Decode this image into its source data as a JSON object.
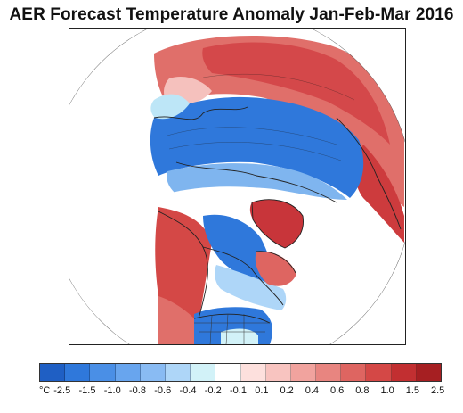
{
  "title": "AER Forecast Temperature Anomaly Jan-Feb-Mar 2016",
  "colorbar": {
    "unit": "°C",
    "colors": [
      "#1f5fc4",
      "#2f78db",
      "#4a8fe6",
      "#68a5ee",
      "#89bbf3",
      "#aed6f8",
      "#d2f2f8",
      "#ffffff",
      "#fde0dd",
      "#f8c4c0",
      "#f1a39e",
      "#e88580",
      "#de6561",
      "#d44846",
      "#c22f31",
      "#a61f22"
    ],
    "labels": [
      "-2.5",
      "-1.5",
      "-1.0",
      "-0.8",
      "-0.6",
      "-0.4",
      "-0.2",
      "-0.1",
      "0.1",
      "0.2",
      "0.4",
      "0.6",
      "0.8",
      "1.0",
      "1.5",
      "2.5"
    ]
  },
  "map": {
    "projection": "north polar stereographic",
    "region_label_colors": {
      "warm_strong": "#d13a3a",
      "warm": "#e8857f",
      "warm_light": "#f7cfcb",
      "neutral": "#ffffff",
      "cool_light": "#cfeefa",
      "cool": "#7fb5ef",
      "cool_strong": "#2d70d6"
    }
  }
}
